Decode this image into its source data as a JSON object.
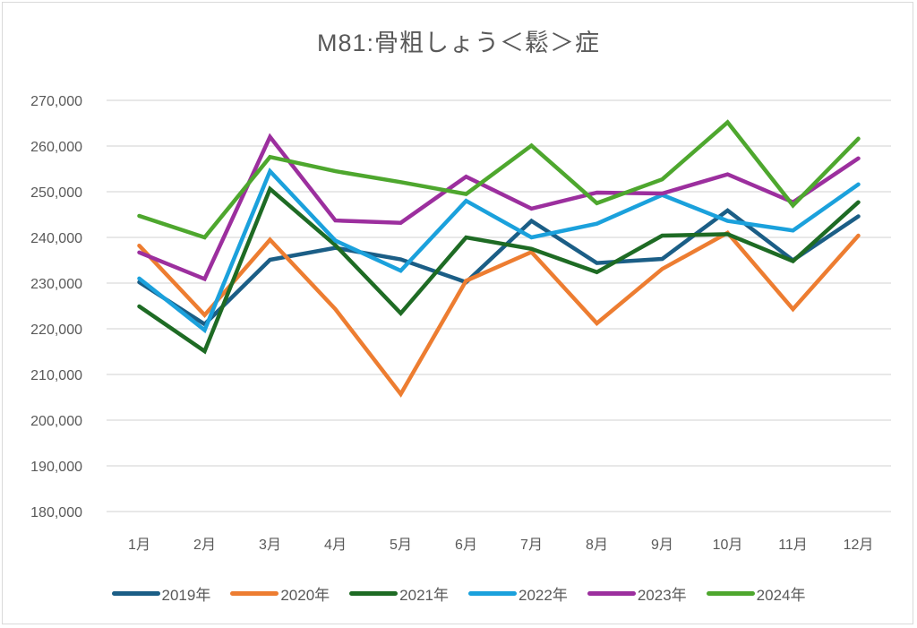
{
  "chart_data": {
    "type": "line",
    "title": "M81:骨粗しょう＜鬆＞症",
    "xlabel": "",
    "ylabel": "",
    "categories": [
      "1月",
      "2月",
      "3月",
      "4月",
      "5月",
      "6月",
      "7月",
      "8月",
      "9月",
      "10月",
      "11月",
      "12月"
    ],
    "ylim": [
      180000,
      270000
    ],
    "yticks": [
      180000,
      190000,
      200000,
      210000,
      220000,
      230000,
      240000,
      250000,
      260000,
      270000
    ],
    "ytick_labels": [
      "180,000",
      "190,000",
      "200,000",
      "210,000",
      "220,000",
      "230,000",
      "240,000",
      "250,000",
      "260,000",
      "270,000"
    ],
    "grid": true,
    "legend_position": "bottom",
    "series": [
      {
        "name": "2019年",
        "color": "#1b5e86",
        "values": [
          230200,
          221000,
          235100,
          237700,
          235200,
          230200,
          243600,
          234400,
          235300,
          245900,
          235000,
          244600
        ]
      },
      {
        "name": "2020年",
        "color": "#ed7d31",
        "values": [
          238200,
          223000,
          239500,
          224300,
          205700,
          230500,
          236800,
          221200,
          233100,
          241000,
          224300,
          240400
        ]
      },
      {
        "name": "2021年",
        "color": "#1e6b24",
        "values": [
          224900,
          215100,
          250600,
          238300,
          223400,
          240000,
          237500,
          232400,
          240400,
          240700,
          234800,
          247700
        ]
      },
      {
        "name": "2022年",
        "color": "#1ba1dc",
        "values": [
          231000,
          219700,
          254500,
          239300,
          232700,
          248000,
          240000,
          243000,
          249300,
          243600,
          241500,
          251600
        ]
      },
      {
        "name": "2023年",
        "color": "#9c2f9e",
        "values": [
          236700,
          230900,
          262000,
          243700,
          243200,
          253300,
          246300,
          249800,
          249600,
          253800,
          247700,
          257300
        ]
      },
      {
        "name": "2024年",
        "color": "#4ea72e",
        "values": [
          244700,
          240000,
          257600,
          254500,
          252100,
          249500,
          260100,
          247500,
          252700,
          265200,
          247000,
          261600
        ]
      }
    ]
  }
}
